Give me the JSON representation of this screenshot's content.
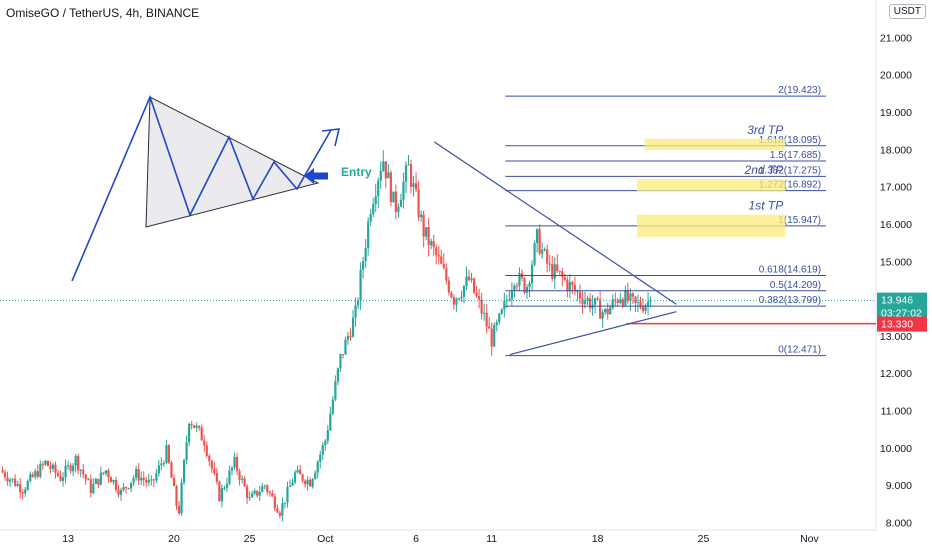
{
  "header": {
    "title": "OmiseGO / TetherUS, 4h, BINANCE",
    "currency": "USDT"
  },
  "colors": {
    "up": "#26a69a",
    "down": "#ef5350",
    "fib": "#3b4fa0",
    "highlight": "#fbeb7b",
    "price_badge": "#26a69a",
    "stop_badge": "#f23645",
    "axis_text": "#131722"
  },
  "chart_data": {
    "type": "candlestick",
    "title": "OmiseGO / TetherUS, 4h, BINANCE",
    "y_axis": {
      "range": [
        7.8,
        22.0
      ],
      "ticks": [
        "8.000",
        "9.000",
        "10.000",
        "11.000",
        "12.000",
        "13.000",
        "14.000",
        "15.000",
        "16.000",
        "17.000",
        "18.000",
        "19.000",
        "20.000",
        "21.000"
      ],
      "tick_values": [
        8,
        9,
        10,
        11,
        12,
        13,
        14,
        15,
        16,
        17,
        18,
        19,
        20,
        21
      ]
    },
    "x_axis": {
      "ticks": [
        "13",
        "20",
        "25",
        "Oct",
        "6",
        "11",
        "18",
        "25",
        "Nov"
      ],
      "tick_days": [
        13,
        20,
        25,
        30,
        36,
        41,
        48,
        55,
        62
      ],
      "day_range": [
        8.5,
        66.4
      ]
    },
    "price_path": [
      [
        8.5,
        9.4
      ],
      [
        10,
        8.9
      ],
      [
        11.5,
        9.6
      ],
      [
        12.5,
        9.2
      ],
      [
        13.5,
        9.7
      ],
      [
        14.5,
        8.9
      ],
      [
        15.5,
        9.4
      ],
      [
        16.5,
        8.8
      ],
      [
        17.5,
        9.3
      ],
      [
        18.5,
        9.0
      ],
      [
        19.5,
        9.9
      ],
      [
        20.3,
        8.2
      ],
      [
        21,
        10.8
      ],
      [
        22,
        10.2
      ],
      [
        23,
        8.7
      ],
      [
        24,
        9.6
      ],
      [
        25,
        8.6
      ],
      [
        26,
        9.0
      ],
      [
        27,
        8.3
      ],
      [
        28,
        9.3
      ],
      [
        29,
        9.1
      ],
      [
        30,
        10.2
      ],
      [
        31,
        12.4
      ],
      [
        32,
        13.6
      ],
      [
        33,
        16.5
      ],
      [
        33.8,
        17.8
      ],
      [
        34.6,
        16.4
      ],
      [
        35.5,
        17.5
      ],
      [
        36.5,
        15.8
      ],
      [
        37.5,
        15.0
      ],
      [
        38.5,
        14.0
      ],
      [
        39.5,
        14.5
      ],
      [
        40.5,
        13.5
      ],
      [
        41,
        12.9
      ],
      [
        41.7,
        13.6
      ],
      [
        42.5,
        14.6
      ],
      [
        43.3,
        14.3
      ],
      [
        44,
        15.6
      ],
      [
        44.8,
        14.8
      ],
      [
        45.5,
        14.6
      ],
      [
        46.5,
        14.2
      ],
      [
        47.5,
        13.9
      ],
      [
        48.5,
        13.6
      ],
      [
        49.5,
        14.1
      ],
      [
        50.5,
        13.8
      ],
      [
        51.6,
        13.946
      ]
    ],
    "current_price": {
      "value": 13.946,
      "label": "13.946",
      "countdown": "03:27:02"
    },
    "stop_level": {
      "value": 13.33,
      "label": "13.330"
    },
    "fib_levels": [
      {
        "ratio": "0",
        "value": 12.471,
        "label": "0(12.471)"
      },
      {
        "ratio": "0.382",
        "value": 13.799,
        "label": "0.382(13.799)"
      },
      {
        "ratio": "0.5",
        "value": 14.209,
        "label": "0.5(14.209)"
      },
      {
        "ratio": "0.618",
        "value": 14.619,
        "label": "0.618(14.619)"
      },
      {
        "ratio": "1",
        "value": 15.947,
        "label": "1(15.947)"
      },
      {
        "ratio": "1.272",
        "value": 16.892,
        "label": "1.272(16.892)"
      },
      {
        "ratio": "1.382",
        "value": 17.275,
        "label": "1.382(17.275)"
      },
      {
        "ratio": "1.5",
        "value": 17.685,
        "label": "1.5(17.685)"
      },
      {
        "ratio": "1.618",
        "value": 18.095,
        "label": "1.618(18.095)"
      },
      {
        "ratio": "2",
        "value": 19.423,
        "label": "2(19.423)"
      }
    ],
    "targets": [
      {
        "label": "1st TP",
        "low": 15.65,
        "high": 16.25
      },
      {
        "label": "2nd TP",
        "low": 16.88,
        "high": 17.2
      },
      {
        "label": "3rd TP",
        "low": 17.98,
        "high": 18.28
      }
    ],
    "triangle": {
      "apex_day": 53.2,
      "upper": [
        [
          37.2,
          18.2
        ],
        [
          53.2,
          13.85
        ]
      ],
      "lower": [
        [
          42.2,
          12.5
        ],
        [
          53.2,
          13.65
        ]
      ]
    },
    "entry_label": "Entry"
  }
}
